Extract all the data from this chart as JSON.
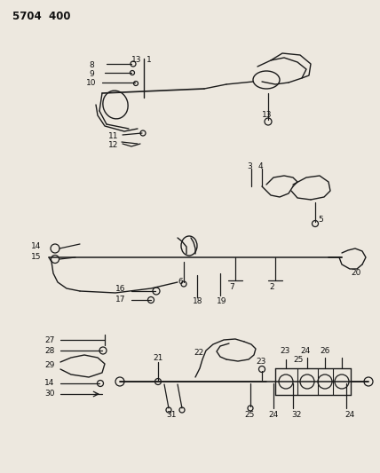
{
  "title": "5704  400",
  "bg_color": "#ede8df",
  "line_color": "#1a1a1a",
  "text_color": "#111111",
  "figsize": [
    4.28,
    5.33
  ],
  "dpi": 100
}
